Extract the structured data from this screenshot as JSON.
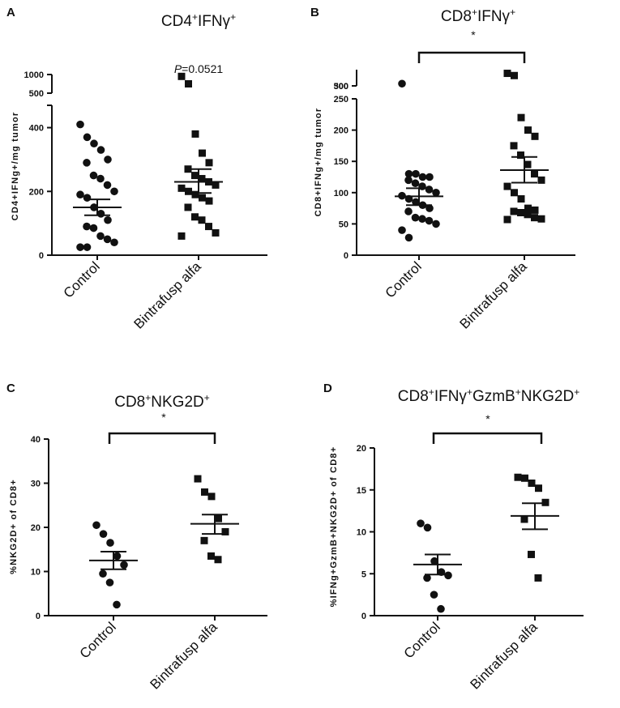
{
  "chart_data": [
    {
      "panel": "A",
      "type": "scatter",
      "title": {
        "base": "CD4",
        "sup1": "+",
        "mid": "IFNγ",
        "sup2": "+"
      },
      "ylabel": "CD4+IFNg+/mg tumor",
      "categories": [
        "Control",
        "Bintrafusp alfa"
      ],
      "annotation": {
        "italic": "P",
        "text": "=0.0521"
      },
      "y_ticks_lower": [
        0,
        200,
        400
      ],
      "y_ticks_upper": [
        500,
        1000
      ],
      "ylim_lower": [
        0,
        470
      ],
      "ylim_upper": [
        500,
        1000
      ],
      "groups": [
        {
          "name": "Control",
          "marker": "circle",
          "mean": 150,
          "sem_low": 125,
          "sem_high": 175,
          "points": [
            410,
            370,
            350,
            330,
            300,
            290,
            250,
            240,
            220,
            200,
            190,
            180,
            150,
            130,
            110,
            90,
            85,
            60,
            50,
            40,
            25,
            25
          ]
        },
        {
          "name": "Bintrafusp alfa",
          "marker": "square",
          "mean": 230,
          "sem_low": 195,
          "sem_high": 270,
          "points": [
            950,
            750,
            380,
            320,
            290,
            270,
            250,
            240,
            230,
            220,
            210,
            200,
            190,
            180,
            170,
            150,
            120,
            110,
            90,
            70,
            60
          ]
        }
      ]
    },
    {
      "panel": "B",
      "type": "scatter",
      "title": {
        "base": "CD8",
        "sup1": "+",
        "mid": "IFNγ",
        "sup2": "+"
      },
      "ylabel": "CD8+IFNg+/mg tumor",
      "categories": [
        "Control",
        "Bintrafusp alfa"
      ],
      "annotation": {
        "italic": "",
        "text": "*"
      },
      "y_ticks_lower": [
        0,
        50,
        100,
        150,
        200,
        250
      ],
      "y_ticks_upper": [
        300,
        500
      ],
      "ylim_lower": [
        0,
        260
      ],
      "ylim_upper": [
        280,
        500
      ],
      "groups": [
        {
          "name": "Control",
          "marker": "circle",
          "mean": 94,
          "sem_low": 80,
          "sem_high": 107,
          "points": [
            310,
            130,
            130,
            125,
            125,
            120,
            115,
            110,
            105,
            100,
            95,
            90,
            85,
            80,
            75,
            70,
            60,
            58,
            55,
            50,
            40,
            28
          ]
        },
        {
          "name": "Bintrafusp alfa",
          "marker": "square",
          "mean": 136,
          "sem_low": 116,
          "sem_high": 157,
          "points": [
            450,
            420,
            220,
            200,
            190,
            175,
            160,
            145,
            130,
            120,
            110,
            100,
            90,
            75,
            72,
            70,
            68,
            65,
            60,
            58,
            57
          ]
        }
      ]
    },
    {
      "panel": "C",
      "type": "scatter",
      "title": {
        "base": "CD8",
        "sup1": "+",
        "mid": "NKG2D",
        "sup2": "+"
      },
      "ylabel": "%NKG2D+ of CD8+",
      "categories": [
        "Control",
        "Bintrafusp alfa"
      ],
      "annotation": {
        "italic": "",
        "text": "*"
      },
      "y_ticks": [
        0,
        10,
        20,
        30,
        40
      ],
      "ylim": [
        0,
        40
      ],
      "groups": [
        {
          "name": "Control",
          "marker": "circle",
          "mean": 12.5,
          "sem_low": 10.5,
          "sem_high": 14.5,
          "points": [
            20.5,
            18.5,
            16.5,
            13.5,
            11.5,
            9.5,
            7.5,
            2.5
          ]
        },
        {
          "name": "Bintrafusp alfa",
          "marker": "square",
          "mean": 20.8,
          "sem_low": 18.5,
          "sem_high": 22.9,
          "points": [
            31,
            28,
            27,
            22,
            19,
            17,
            13.5,
            12.7
          ]
        }
      ]
    },
    {
      "panel": "D",
      "type": "scatter",
      "title": {
        "base": "CD8",
        "sup1": "+",
        "mid": "IFNγ",
        "sup2": "+",
        "mid2": "GzmB",
        "sup3": "+",
        "mid3": "NKG2D",
        "sup4": "+"
      },
      "ylabel": "%IFNg+GzmB+NKG2D+ of CD8+",
      "categories": [
        "Control",
        "Bintrafusp alfa"
      ],
      "annotation": {
        "italic": "",
        "text": "*"
      },
      "y_ticks": [
        0,
        5,
        10,
        15,
        20
      ],
      "ylim": [
        0,
        20
      ],
      "groups": [
        {
          "name": "Control",
          "marker": "circle",
          "mean": 6.1,
          "sem_low": 4.9,
          "sem_high": 7.3,
          "points": [
            11,
            10.5,
            6.5,
            5.2,
            4.8,
            4.5,
            2.5,
            0.8
          ]
        },
        {
          "name": "Bintrafusp alfa",
          "marker": "square",
          "mean": 11.9,
          "sem_low": 10.3,
          "sem_high": 13.4,
          "points": [
            16.5,
            16.4,
            15.8,
            15.2,
            13.5,
            11.5,
            7.3,
            4.5
          ]
        }
      ]
    }
  ]
}
